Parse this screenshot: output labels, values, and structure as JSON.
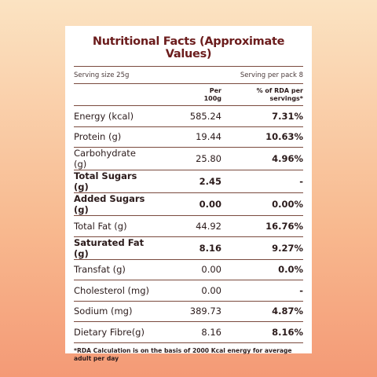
{
  "header": {
    "title": "Nutritional Facts (Approximate Values)",
    "serving_size": "Serving size 25g",
    "serving_per_pack": "Serving per pack 8"
  },
  "table": {
    "columns": [
      "Per 100g",
      "% of RDA per servings*"
    ],
    "rows": [
      {
        "label": "Energy (kcal)",
        "per100g": "585.24",
        "rda": "7.31%",
        "bold": false
      },
      {
        "label": "Protein (g)",
        "per100g": "19.44",
        "rda": "10.63%",
        "bold": false
      },
      {
        "label": "Carbohydrate (g)",
        "per100g": "25.80",
        "rda": "4.96%",
        "bold": false
      },
      {
        "label": "Total Sugars (g)",
        "per100g": "2.45",
        "rda": "-",
        "bold": true
      },
      {
        "label": "Added Sugars (g)",
        "per100g": "0.00",
        "rda": "0.00%",
        "bold": true
      },
      {
        "label": "Total Fat (g)",
        "per100g": "44.92",
        "rda": "16.76%",
        "bold": false
      },
      {
        "label": "Saturated Fat (g)",
        "per100g": "8.16",
        "rda": "9.27%",
        "bold": true
      },
      {
        "label": "Transfat (g)",
        "per100g": "0.00",
        "rda": "0.0%",
        "bold": false
      },
      {
        "label": "Cholesterol (mg)",
        "per100g": "0.00",
        "rda": "-",
        "bold": false
      },
      {
        "label": "Sodium (mg)",
        "per100g": "389.73",
        "rda": "4.87%",
        "bold": false
      },
      {
        "label": "Dietary Fibre(g)",
        "per100g": "8.16",
        "rda": "8.16%",
        "bold": false
      }
    ]
  },
  "footnote": "*RDA Calculation is on the basis of 2000 Kcal energy for average adult per day"
}
